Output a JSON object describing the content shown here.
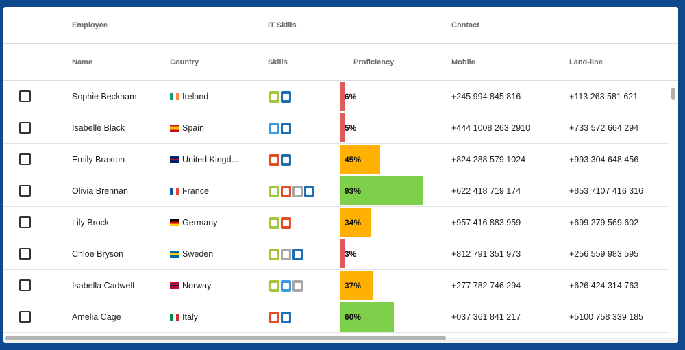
{
  "header": {
    "groups": [
      "Employee",
      "IT Skills",
      "Contact"
    ],
    "columns": [
      "Name",
      "Country",
      "Skills",
      "Proficiency",
      "Mobile",
      "Land-line"
    ]
  },
  "skill_colors": {
    "android": "#a4c639",
    "html5": "#e44d26",
    "css3": "#3c9ae0",
    "mac": "#a7a7a7",
    "windows": "#1f6fb5"
  },
  "rows": [
    {
      "name": "Sophie Beckham",
      "country": "Ireland",
      "flag": "ireland-flag",
      "skills": [
        "android",
        "windows"
      ],
      "proficiency": "6%",
      "level": 6,
      "color": "#e05a5a",
      "mobile": "+245 994 845 816",
      "landline": "+113 263 581 621"
    },
    {
      "name": "Isabelle Black",
      "country": "Spain",
      "flag": "spain-flag",
      "skills": [
        "css3",
        "windows"
      ],
      "proficiency": "5%",
      "level": 5,
      "color": "#e05a5a",
      "mobile": "+444 1008 263 2910",
      "landline": "+733 572 664 294"
    },
    {
      "name": "Emily Braxton",
      "country": "United Kingd...",
      "flag": "uk-flag",
      "skills": [
        "html5",
        "windows"
      ],
      "proficiency": "45%",
      "level": 45,
      "color": "#ffb000",
      "mobile": "+824 288 579 1024",
      "landline": "+993 304 648 456"
    },
    {
      "name": "Olivia Brennan",
      "country": "France",
      "flag": "france-flag",
      "skills": [
        "android",
        "html5",
        "mac",
        "windows"
      ],
      "proficiency": "93%",
      "level": 93,
      "color": "#7ed04a",
      "mobile": "+622 418 719 174",
      "landline": "+853 7107 416 316"
    },
    {
      "name": "Lily Brock",
      "country": "Germany",
      "flag": "germany-flag",
      "skills": [
        "android",
        "html5"
      ],
      "proficiency": "34%",
      "level": 34,
      "color": "#ffb000",
      "mobile": "+957 416 883 959",
      "landline": "+699 279 569 602"
    },
    {
      "name": "Chloe Bryson",
      "country": "Sweden",
      "flag": "sweden-flag",
      "skills": [
        "android",
        "mac",
        "windows"
      ],
      "proficiency": "3%",
      "level": 3,
      "color": "#e05a5a",
      "mobile": "+812 791 351 973",
      "landline": "+256 559 983 595"
    },
    {
      "name": "Isabella Cadwell",
      "country": "Norway",
      "flag": "norway-flag",
      "skills": [
        "android",
        "css3",
        "mac"
      ],
      "proficiency": "37%",
      "level": 37,
      "color": "#ffb000",
      "mobile": "+277 782 746 294",
      "landline": "+626 424 314 763"
    },
    {
      "name": "Amelia Cage",
      "country": "Italy",
      "flag": "italy-flag",
      "skills": [
        "html5",
        "windows"
      ],
      "proficiency": "60%",
      "level": 60,
      "color": "#7ed04a",
      "mobile": "+037 361 841 217",
      "landline": "+5100 758 339 185"
    }
  ]
}
